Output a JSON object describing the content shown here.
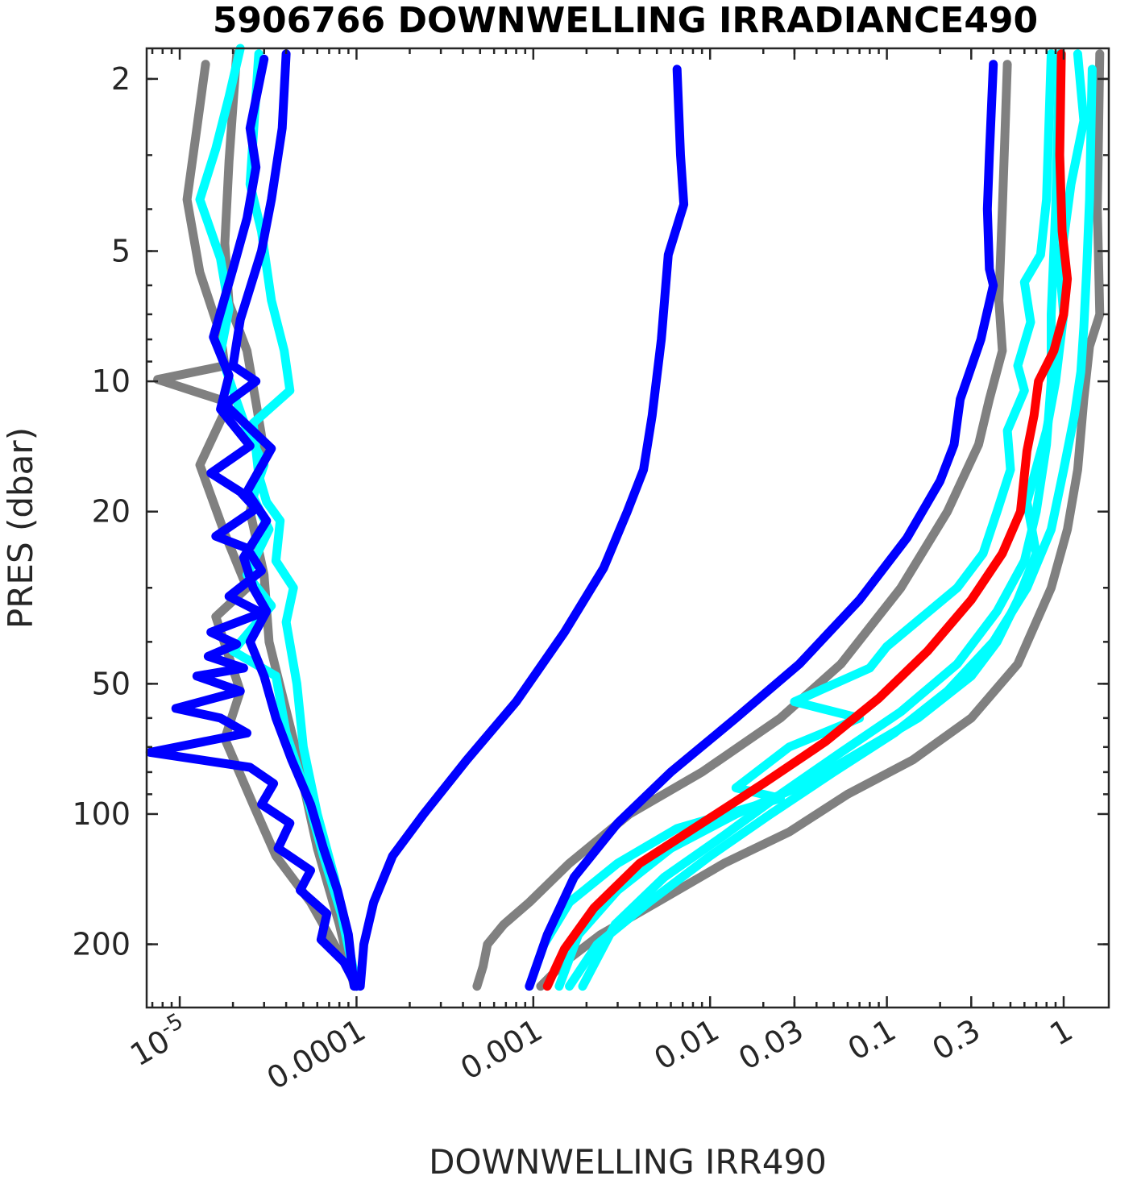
{
  "chart_data": {
    "type": "line",
    "title": "5906766  DOWNWELLING IRRADIANCE490",
    "xlabel": "DOWNWELLING IRR490",
    "ylabel": "PRES (dbar)",
    "xscale": "log",
    "yscale": "log",
    "yreversed": true,
    "xlim": [
      6.5e-06,
      1.8
    ],
    "ylim": [
      1.7,
      280
    ],
    "grid": false,
    "legend": "none",
    "x_ticks": [
      {
        "value": 1e-05,
        "label": "10",
        "exp": "-5"
      },
      {
        "value": 0.0001,
        "label": "0.0001"
      },
      {
        "value": 0.001,
        "label": "0.001"
      },
      {
        "value": 0.01,
        "label": "0.01"
      },
      {
        "value": 0.03,
        "label": "0.03"
      },
      {
        "value": 0.1,
        "label": "0.1"
      },
      {
        "value": 0.3,
        "label": "0.3"
      },
      {
        "value": 1,
        "label": "1"
      }
    ],
    "y_ticks": [
      {
        "value": 2,
        "label": "2"
      },
      {
        "value": 5,
        "label": "5"
      },
      {
        "value": 10,
        "label": "10"
      },
      {
        "value": 20,
        "label": "20"
      },
      {
        "value": 50,
        "label": "50"
      },
      {
        "value": 100,
        "label": "100"
      },
      {
        "value": 200,
        "label": "200"
      }
    ],
    "series": [
      {
        "color": "#808080",
        "x": [
          1.4e-05,
          1.25e-05,
          1.1e-05,
          1.3e-05,
          1.7e-05,
          1.8e-05,
          7.5e-06,
          1.9e-05,
          1.3e-05,
          1.8e-05,
          2.4e-05,
          1.6e-05,
          2.2e-05,
          1.8e-05,
          2.6e-05,
          3.5e-05,
          5.5e-05,
          8e-05,
          0.0001
        ],
        "y": [
          1.85,
          2.6,
          3.8,
          5.6,
          7.8,
          9.2,
          9.9,
          11.2,
          15.6,
          22.5,
          30.0,
          35.0,
          52.0,
          67.0,
          95.0,
          125.0,
          160.0,
          210.0,
          250.0
        ]
      },
      {
        "color": "#808080",
        "x": [
          2.1e-05,
          1.9e-05,
          1.8e-05,
          1.9e-05,
          2.4e-05,
          2.7e-05,
          3e-05,
          2.5e-05,
          3e-05,
          3.2e-05,
          4.5e-05,
          6e-05,
          8e-05,
          9.7e-05
        ],
        "y": [
          1.75,
          3.1,
          4.8,
          6.6,
          8.5,
          11.2,
          14.5,
          20.0,
          28.0,
          40.0,
          70.0,
          120.0,
          180.0,
          250.0
        ]
      },
      {
        "color": "#808080",
        "x": [
          0.48,
          0.45,
          0.43,
          0.45,
          0.38,
          0.33,
          0.22,
          0.12,
          0.055,
          0.025,
          0.009,
          0.0035,
          0.0016,
          0.00095,
          0.00068,
          0.00055,
          0.00052,
          0.00048
        ],
        "y": [
          1.85,
          4.0,
          6.5,
          8.5,
          11.0,
          14.0,
          20.0,
          30.0,
          45.0,
          60.0,
          80.0,
          100.0,
          130.0,
          160.0,
          180.0,
          200.0,
          225.0,
          250.0
        ]
      },
      {
        "color": "#808080",
        "x": [
          1.6,
          1.55,
          1.6,
          1.4,
          1.3,
          1.2,
          1.05,
          0.85,
          0.55,
          0.3,
          0.14,
          0.06,
          0.028,
          0.012,
          0.005,
          0.0024,
          0.0015,
          0.0011
        ],
        "y": [
          1.75,
          4.0,
          7.0,
          8.3,
          11.0,
          16.0,
          22.0,
          30.0,
          45.0,
          60.0,
          75.0,
          90.0,
          110.0,
          130.0,
          160.0,
          190.0,
          220.0,
          250.0
        ]
      },
      {
        "color": "#00ffff",
        "x": [
          2.2e-05,
          1.9e-05,
          1.6e-05,
          1.3e-05,
          1.7e-05,
          1.9e-05,
          1.7e-05,
          2e-05,
          2.4e-05,
          3e-05,
          2.6e-05,
          3.2e-05,
          2.4e-05,
          3.3e-05,
          2e-05,
          3.5e-05,
          4e-05,
          5.2e-05,
          6.5e-05,
          8.2e-05,
          0.0001
        ],
        "y": [
          1.7,
          2.2,
          2.9,
          3.8,
          5.2,
          6.8,
          8.6,
          10.5,
          13.0,
          15.6,
          18.5,
          22.0,
          28.0,
          33.0,
          42.0,
          48.0,
          65.0,
          90.0,
          125.0,
          170.0,
          250.0
        ]
      },
      {
        "color": "#00ffff",
        "x": [
          2.8e-05,
          2.5e-05,
          2.9e-05,
          3.3e-05,
          3.9e-05,
          4.2e-05,
          2.6e-05,
          2.8e-05,
          3.1e-05,
          3.7e-05,
          3.5e-05,
          4.4e-05,
          4e-05,
          4.6e-05,
          5e-05,
          6e-05,
          7.5e-05,
          8.8e-05,
          0.0001
        ],
        "y": [
          1.75,
          3.5,
          4.5,
          6.5,
          8.5,
          10.5,
          12.5,
          16.5,
          19.0,
          21.0,
          26.0,
          30.0,
          36.0,
          50.0,
          70.0,
          100.0,
          140.0,
          190.0,
          250.0
        ]
      },
      {
        "color": "#00ffff",
        "x": [
          0.85,
          0.8,
          0.74,
          0.6,
          0.65,
          0.55,
          0.6,
          0.48,
          0.5,
          0.42,
          0.35,
          0.25,
          0.1,
          0.08,
          0.03,
          0.07,
          0.028,
          0.014,
          0.025,
          0.0065,
          0.003,
          0.0016,
          0.00115,
          0.00095
        ],
        "y": [
          1.75,
          3.8,
          5.1,
          5.9,
          7.3,
          9.2,
          10.5,
          13.0,
          16.0,
          20.0,
          25.0,
          30.0,
          41.0,
          46.0,
          55.0,
          60.0,
          70.0,
          87.0,
          92.0,
          108.0,
          130.0,
          160.0,
          200.0,
          250.0
        ]
      },
      {
        "color": "#00ffff",
        "x": [
          1.2,
          1.3,
          1.1,
          0.95,
          1.0,
          0.9,
          0.8,
          0.62,
          0.7,
          0.55,
          0.42,
          0.3,
          0.15,
          0.07,
          0.035,
          0.014,
          0.006,
          0.003,
          0.0018,
          0.0014
        ],
        "y": [
          1.75,
          2.5,
          3.5,
          5.5,
          7.0,
          10.0,
          13.0,
          19.0,
          25.0,
          32.0,
          40.0,
          48.0,
          60.0,
          72.0,
          85.0,
          100.0,
          120.0,
          150.0,
          190.0,
          250.0
        ]
      },
      {
        "color": "#00ffff",
        "x": [
          1.45,
          1.4,
          1.35,
          1.3,
          1.25,
          1.15,
          1.0,
          0.85,
          0.62,
          0.4,
          0.22,
          0.11,
          0.05,
          0.022,
          0.01,
          0.0045,
          0.0023,
          0.0016
        ],
        "y": [
          1.9,
          3.8,
          5.5,
          7.5,
          9.5,
          12.0,
          16.0,
          22.0,
          30.0,
          40.0,
          52.0,
          65.0,
          80.0,
          100.0,
          125.0,
          160.0,
          200.0,
          250.0
        ]
      },
      {
        "color": "#00ffff",
        "x": [
          0.95,
          0.9,
          0.85,
          0.85,
          0.8,
          0.7,
          0.6,
          0.42,
          0.25,
          0.12,
          0.055,
          0.025,
          0.012,
          0.0055,
          0.0029,
          0.0019
        ],
        "y": [
          1.75,
          4.0,
          7.0,
          10.0,
          14.0,
          20.0,
          26.0,
          34.0,
          45.0,
          58.0,
          72.0,
          90.0,
          112.0,
          140.0,
          180.0,
          250.0
        ]
      },
      {
        "color": "#0000ff",
        "x": [
          3e-05,
          2.5e-05,
          2.7e-05,
          2.4e-05,
          2e-05,
          1.55e-05,
          1.9e-05,
          1.7e-05,
          2.5e-05,
          1.5e-05,
          2.2e-05,
          2.7e-05,
          1.6e-05,
          2.4e-05,
          2.9e-05,
          1.9e-05,
          2.9e-05,
          1.5e-05,
          2.1e-05,
          1.45e-05,
          2.3e-05,
          1.25e-05,
          2.2e-05,
          9.5e-06,
          1.7e-05,
          2.4e-05,
          6.8e-06,
          2.5e-05,
          3.4e-05,
          2.9e-05,
          4.2e-05,
          3.6e-05,
          5.5e-05,
          4.8e-05,
          6.8e-05,
          6.3e-05,
          8.5e-05,
          0.0001
        ],
        "y": [
          1.8,
          2.6,
          3.2,
          4.2,
          5.5,
          7.9,
          9.7,
          11.6,
          14.1,
          16.3,
          18.0,
          19.7,
          22.8,
          24.3,
          27.4,
          31.4,
          34.3,
          38.0,
          40.5,
          43.2,
          46.0,
          48.0,
          52.0,
          57.0,
          60.0,
          65.0,
          72.0,
          78.0,
          85.0,
          95.0,
          105.0,
          120.0,
          135.0,
          150.0,
          170.0,
          195.0,
          220.0,
          250.0
        ]
      },
      {
        "color": "#0000ff",
        "x": [
          4e-05,
          3.8e-05,
          3.3e-05,
          2.9e-05,
          2.2e-05,
          2e-05,
          2.7e-05,
          1.8e-05,
          3.3e-05,
          2.4e-05,
          3.1e-05,
          2.3e-05,
          2.6e-05,
          3.1e-05,
          2.5e-05,
          3e-05,
          3.5e-05,
          4.3e-05,
          5.5e-05,
          6.5e-05,
          7.8e-05,
          9e-05,
          9.7e-05
        ],
        "y": [
          1.75,
          2.6,
          3.8,
          5.0,
          7.2,
          9.2,
          10.0,
          11.3,
          14.3,
          18.0,
          21.0,
          25.5,
          30.0,
          34.0,
          40.0,
          48.0,
          60.0,
          75.0,
          95.0,
          120.0,
          150.0,
          190.0,
          250.0
        ]
      },
      {
        "color": "#0000ff",
        "x": [
          0.0065,
          0.0068,
          0.0071,
          0.0058,
          0.0053,
          0.0047,
          0.0042,
          0.0034,
          0.0025,
          0.0015,
          0.0008,
          0.00042,
          0.00024,
          0.00016,
          0.000125,
          0.00011,
          0.000105
        ],
        "y": [
          1.9,
          3.0,
          3.9,
          5.1,
          8.0,
          12.0,
          16.0,
          20.0,
          27.0,
          38.0,
          55.0,
          75.0,
          100.0,
          125.0,
          160.0,
          200.0,
          250.0
        ]
      },
      {
        "color": "#0000ff",
        "x": [
          0.4,
          0.38,
          0.37,
          0.38,
          0.4,
          0.34,
          0.26,
          0.24,
          0.2,
          0.13,
          0.07,
          0.032,
          0.014,
          0.006,
          0.003,
          0.0017,
          0.0012,
          0.00095
        ],
        "y": [
          1.85,
          3.0,
          4.0,
          5.5,
          6.0,
          8.0,
          11.0,
          14.0,
          17.0,
          23.0,
          32.0,
          45.0,
          60.0,
          80.0,
          105.0,
          140.0,
          190.0,
          250.0
        ]
      },
      {
        "color": "#ff0000",
        "x": [
          0.97,
          0.95,
          0.98,
          1.05,
          1.0,
          0.88,
          0.72,
          0.68,
          0.62,
          0.57,
          0.45,
          0.3,
          0.17,
          0.09,
          0.045,
          0.02,
          0.009,
          0.004,
          0.0022,
          0.0015,
          0.00135,
          0.0012
        ],
        "y": [
          1.75,
          3.0,
          4.5,
          5.8,
          7.0,
          8.5,
          10.0,
          12.0,
          14.5,
          20.0,
          25.0,
          32.0,
          42.0,
          54.0,
          68.0,
          85.0,
          105.0,
          130.0,
          165.0,
          205.0,
          225.0,
          250.0
        ]
      }
    ]
  }
}
